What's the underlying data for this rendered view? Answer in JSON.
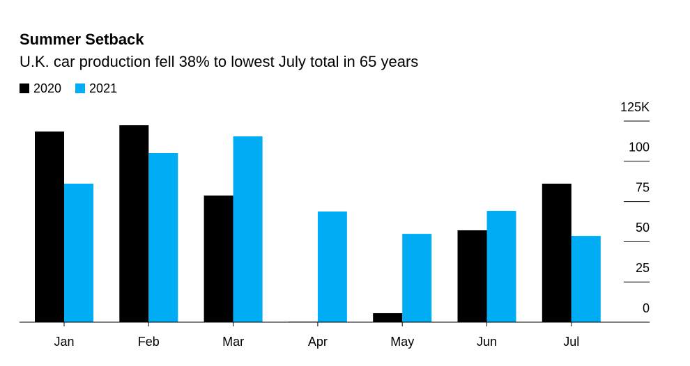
{
  "chart_data": {
    "type": "bar",
    "title": "Summer Setback",
    "subtitle": "U.K. car production fell 38% to lowest July total in 65 years",
    "categories": [
      "Jan",
      "Feb",
      "Mar",
      "Apr",
      "May",
      "Jun",
      "Jul"
    ],
    "series": [
      {
        "name": "2020",
        "color": "#000000",
        "values": [
          118.5,
          122.4,
          78.7,
          0.3,
          5.6,
          57.1,
          86.1
        ]
      },
      {
        "name": "2021",
        "color": "#00adf5",
        "values": [
          86.1,
          105.1,
          115.5,
          68.8,
          54.9,
          69.2,
          53.6
        ]
      }
    ],
    "ylim": [
      0,
      125
    ],
    "yticks": [
      0,
      25,
      50,
      75,
      100,
      {
        "value": 125,
        "label": "125K"
      }
    ],
    "legend": "top-left"
  }
}
